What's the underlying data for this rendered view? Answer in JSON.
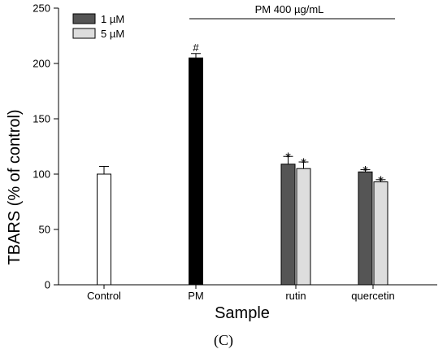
{
  "chart_data": {
    "type": "bar",
    "ylabel": "TBARS (% of control)",
    "xlabel": "Sample",
    "ylim": [
      0,
      250
    ],
    "yticks": [
      0,
      50,
      100,
      150,
      200,
      250
    ],
    "categories": [
      "Control",
      "PM",
      "rutin",
      "quercetin"
    ],
    "bracket_label": "PM 400 µg/mL",
    "legend": [
      {
        "name": "1 µM",
        "color": "#555555"
      },
      {
        "name": "5 µM",
        "color": "#dddddd"
      }
    ],
    "bars": [
      {
        "category": "Control",
        "value": 100,
        "error": 7,
        "color": "#ffffff",
        "mark": ""
      },
      {
        "category": "PM",
        "value": 205,
        "error": 4,
        "color": "#000000",
        "mark": "#"
      },
      {
        "category": "rutin",
        "series": "1 µM",
        "value": 109,
        "error": 7,
        "color": "#555555",
        "mark": "*"
      },
      {
        "category": "rutin",
        "series": "5 µM",
        "value": 105,
        "error": 6,
        "color": "#dddddd",
        "mark": "*"
      },
      {
        "category": "quercetin",
        "series": "1 µM",
        "value": 102,
        "error": 2,
        "color": "#555555",
        "mark": "*"
      },
      {
        "category": "quercetin",
        "series": "5 µM",
        "value": 93,
        "error": 2,
        "color": "#dddddd",
        "mark": "*"
      }
    ]
  },
  "caption": "(C)"
}
